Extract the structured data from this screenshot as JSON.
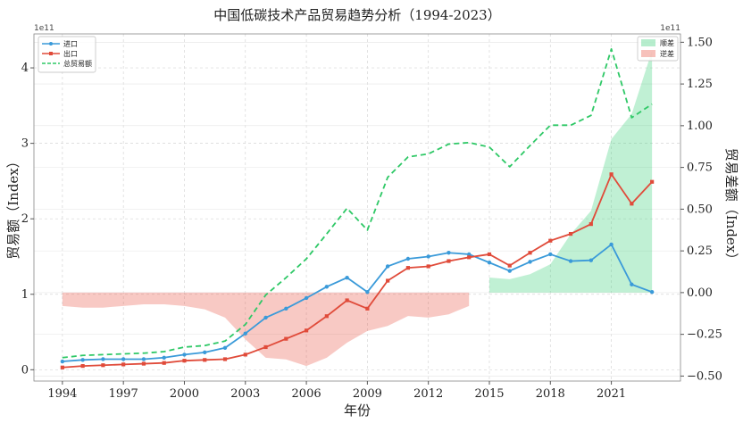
{
  "chart_data": {
    "type": "line",
    "title": "中国低碳技术产品贸易趋势分析（1994-2023）",
    "xlabel": "年份",
    "ylabel": "贸易额（Index）",
    "y2label": "贸易差额（Index）",
    "y_exponent": "1e11",
    "y2_exponent": "1e11",
    "x": [
      1994,
      1995,
      1996,
      1997,
      1998,
      1999,
      2000,
      2001,
      2002,
      2003,
      2004,
      2005,
      2006,
      2007,
      2008,
      2009,
      2010,
      2011,
      2012,
      2013,
      2014,
      2015,
      2016,
      2017,
      2018,
      2019,
      2020,
      2021,
      2022,
      2023
    ],
    "x_ticks": [
      1994,
      1997,
      2000,
      2003,
      2006,
      2009,
      2012,
      2015,
      2018,
      2021
    ],
    "xlim": [
      1992.6,
      2024.4
    ],
    "ylim": [
      -0.15,
      4.45
    ],
    "y_ticks": [
      0,
      1,
      2,
      3,
      4
    ],
    "y2lim": [
      -0.53,
      1.55
    ],
    "y2_ticks": [
      -0.5,
      -0.25,
      0.0,
      0.25,
      0.5,
      0.75,
      1.0,
      1.25,
      1.5
    ],
    "y2_tick_labels": [
      "−0.50",
      "−0.25",
      "0.00",
      "0.25",
      "0.50",
      "0.75",
      "1.00",
      "1.25",
      "1.50"
    ],
    "grid": true,
    "series": [
      {
        "name": "进口",
        "axis": "left",
        "style": "solid",
        "marker": "circle",
        "color": "#3a9ad9",
        "values": [
          0.11,
          0.13,
          0.14,
          0.14,
          0.14,
          0.16,
          0.2,
          0.23,
          0.29,
          0.48,
          0.69,
          0.81,
          0.95,
          1.1,
          1.22,
          1.03,
          1.37,
          1.47,
          1.5,
          1.55,
          1.53,
          1.42,
          1.31,
          1.43,
          1.53,
          1.44,
          1.45,
          1.66,
          1.13,
          1.03
        ]
      },
      {
        "name": "出口",
        "axis": "left",
        "style": "solid",
        "marker": "square",
        "color": "#e04b3a",
        "values": [
          0.03,
          0.05,
          0.06,
          0.07,
          0.08,
          0.09,
          0.12,
          0.13,
          0.14,
          0.2,
          0.3,
          0.41,
          0.52,
          0.71,
          0.92,
          0.81,
          1.18,
          1.35,
          1.37,
          1.44,
          1.49,
          1.53,
          1.38,
          1.55,
          1.71,
          1.8,
          1.93,
          2.59,
          2.2,
          2.49
        ]
      },
      {
        "name": "总贸易额",
        "axis": "left",
        "style": "dashed",
        "marker": "none",
        "color": "#2ec866",
        "values": [
          0.16,
          0.19,
          0.2,
          0.21,
          0.22,
          0.24,
          0.3,
          0.32,
          0.38,
          0.6,
          0.99,
          1.22,
          1.47,
          1.8,
          2.14,
          1.85,
          2.55,
          2.82,
          2.86,
          2.99,
          3.01,
          2.95,
          2.69,
          2.97,
          3.24,
          3.24,
          3.37,
          4.25,
          3.34,
          3.52
        ]
      }
    ],
    "areas": [
      {
        "name": "顺差",
        "axis": "right",
        "color": "#2ecc71",
        "opacity": 0.3,
        "x": [
          2015,
          2016,
          2017,
          2018,
          2019,
          2020,
          2021,
          2022,
          2023
        ],
        "values": [
          0.09,
          0.08,
          0.11,
          0.17,
          0.35,
          0.49,
          0.92,
          1.07,
          1.45
        ]
      },
      {
        "name": "逆差",
        "axis": "right",
        "color": "#e74c3c",
        "opacity": 0.3,
        "x": [
          1994,
          1995,
          1996,
          1997,
          1998,
          1999,
          2000,
          2001,
          2002,
          2003,
          2004,
          2005,
          2006,
          2007,
          2008,
          2009,
          2010,
          2011,
          2012,
          2013,
          2014
        ],
        "values": [
          -0.08,
          -0.09,
          -0.09,
          -0.08,
          -0.07,
          -0.07,
          -0.08,
          -0.1,
          -0.15,
          -0.28,
          -0.39,
          -0.4,
          -0.44,
          -0.39,
          -0.3,
          -0.23,
          -0.2,
          -0.14,
          -0.15,
          -0.13,
          -0.08
        ]
      }
    ],
    "legend_left": {
      "position": "top-left",
      "entries": [
        "进口",
        "出口",
        "总贸易额"
      ]
    },
    "legend_right": {
      "position": "top-right",
      "entries": [
        "顺差",
        "逆差"
      ]
    }
  }
}
